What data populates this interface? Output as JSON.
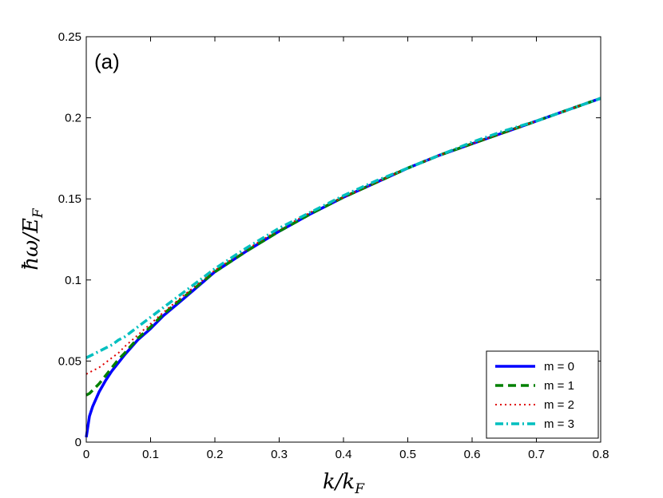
{
  "chart_data": {
    "type": "line",
    "panel_label": "(a)",
    "xlabel": "k/k_F",
    "ylabel": "ħω/E_F",
    "xlabel_parts": {
      "base": "k/k",
      "sub": "F"
    },
    "ylabel_parts": {
      "base": "ħω/E",
      "sub": "F"
    },
    "xlim": [
      0,
      0.8
    ],
    "ylim": [
      0,
      0.25
    ],
    "xticks": [
      0,
      0.1,
      0.2,
      0.3,
      0.4,
      0.5,
      0.6,
      0.7,
      0.8
    ],
    "xtick_labels": [
      "0",
      "0.1",
      "0.2",
      "0.3",
      "0.4",
      "0.5",
      "0.6",
      "0.7",
      "0.8"
    ],
    "yticks": [
      0,
      0.05,
      0.1,
      0.15,
      0.2,
      0.25
    ],
    "ytick_labels": [
      "0",
      "0.05",
      "0.1",
      "0.15",
      "0.2",
      "0.25"
    ],
    "grid": false,
    "legend_position": "bottom-right",
    "series": [
      {
        "name": "m = 0",
        "color": "#0000ff",
        "style": "solid",
        "x": [
          0.0,
          0.005,
          0.01,
          0.02,
          0.03,
          0.04,
          0.05,
          0.06,
          0.08,
          0.1,
          0.12,
          0.15,
          0.2,
          0.25,
          0.3,
          0.35,
          0.4,
          0.45,
          0.5,
          0.55,
          0.6,
          0.65,
          0.7,
          0.75,
          0.8
        ],
        "y": [
          0.003,
          0.016,
          0.022,
          0.031,
          0.038,
          0.044,
          0.049,
          0.054,
          0.063,
          0.07,
          0.078,
          0.088,
          0.105,
          0.118,
          0.13,
          0.141,
          0.151,
          0.16,
          0.169,
          0.177,
          0.184,
          0.191,
          0.198,
          0.205,
          0.212
        ]
      },
      {
        "name": "m = 1",
        "color": "#008000",
        "style": "dashed",
        "x": [
          0.0,
          0.005,
          0.01,
          0.02,
          0.03,
          0.04,
          0.05,
          0.06,
          0.08,
          0.1,
          0.12,
          0.15,
          0.2,
          0.25,
          0.3,
          0.35,
          0.4,
          0.45,
          0.5,
          0.55,
          0.6,
          0.65,
          0.7,
          0.75,
          0.8
        ],
        "y": [
          0.029,
          0.03,
          0.032,
          0.036,
          0.041,
          0.046,
          0.051,
          0.055,
          0.064,
          0.071,
          0.079,
          0.089,
          0.105,
          0.118,
          0.13,
          0.141,
          0.151,
          0.16,
          0.169,
          0.177,
          0.184,
          0.191,
          0.198,
          0.205,
          0.212
        ]
      },
      {
        "name": "m = 2",
        "color": "#e00000",
        "style": "dotted",
        "x": [
          0.0,
          0.005,
          0.01,
          0.02,
          0.03,
          0.04,
          0.05,
          0.06,
          0.08,
          0.1,
          0.12,
          0.15,
          0.2,
          0.25,
          0.3,
          0.35,
          0.4,
          0.45,
          0.5,
          0.55,
          0.6,
          0.65,
          0.7,
          0.75,
          0.8
        ],
        "y": [
          0.042,
          0.043,
          0.044,
          0.046,
          0.049,
          0.052,
          0.055,
          0.059,
          0.066,
          0.073,
          0.08,
          0.09,
          0.106,
          0.119,
          0.131,
          0.142,
          0.151,
          0.16,
          0.169,
          0.177,
          0.184,
          0.191,
          0.198,
          0.205,
          0.212
        ]
      },
      {
        "name": "m = 3",
        "color": "#00bfbf",
        "style": "dashdot",
        "x": [
          0.0,
          0.005,
          0.01,
          0.02,
          0.03,
          0.04,
          0.05,
          0.06,
          0.08,
          0.1,
          0.12,
          0.15,
          0.2,
          0.25,
          0.3,
          0.35,
          0.4,
          0.45,
          0.5,
          0.55,
          0.6,
          0.65,
          0.7,
          0.75,
          0.8
        ],
        "y": [
          0.052,
          0.053,
          0.054,
          0.056,
          0.058,
          0.06,
          0.063,
          0.065,
          0.071,
          0.077,
          0.083,
          0.092,
          0.107,
          0.12,
          0.132,
          0.142,
          0.152,
          0.161,
          0.169,
          0.177,
          0.185,
          0.192,
          0.198,
          0.205,
          0.212
        ]
      }
    ]
  }
}
